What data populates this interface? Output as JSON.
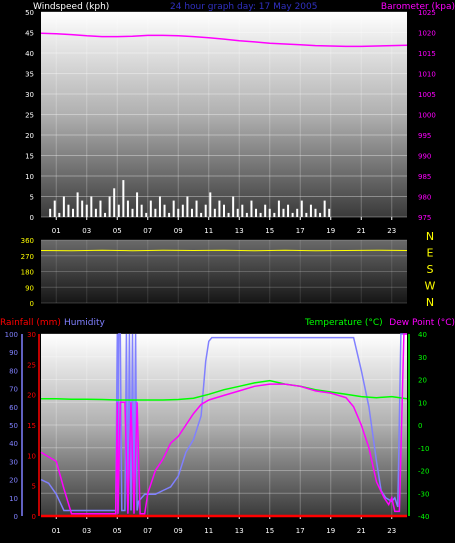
{
  "colors": {
    "background": "#000000",
    "wind": "#ffffff",
    "barometer": "#ff00ff",
    "direction": "#ffff00",
    "rainfall": "#ff0000",
    "humidity": "#8080ff",
    "temperature": "#00ff00",
    "dewpoint": "#ff00ff",
    "title": "#3030c0"
  },
  "chart_data": [
    {
      "type": "line",
      "title": "24 hour graph day: 17 May 2005",
      "ylabel_left": "Windspeed (kph)",
      "ylabel_right": "Barometer (kpa)",
      "x_ticks": [
        "01",
        "03",
        "05",
        "07",
        "09",
        "11",
        "13",
        "15",
        "17",
        "19",
        "21",
        "23"
      ],
      "ylim_left": [
        0,
        50
      ],
      "yticks_left": [
        "0",
        "5",
        "10",
        "15",
        "20",
        "25",
        "30",
        "35",
        "40",
        "45",
        "50"
      ],
      "ylim_right": [
        975,
        1025
      ],
      "yticks_right": [
        "975",
        "980",
        "985",
        "990",
        "995",
        "1000",
        "1005",
        "1010",
        "1015",
        "1020",
        "1025"
      ],
      "series": [
        {
          "name": "Windspeed",
          "type": "bar",
          "x": [
            0.6,
            0.9,
            1.2,
            1.5,
            1.8,
            2.1,
            2.4,
            2.7,
            3.0,
            3.3,
            3.6,
            3.9,
            4.2,
            4.5,
            4.8,
            5.1,
            5.4,
            5.7,
            6.0,
            6.3,
            6.6,
            6.9,
            7.2,
            7.5,
            7.8,
            8.1,
            8.4,
            8.7,
            9.0,
            9.3,
            9.6,
            9.9,
            10.2,
            10.5,
            10.8,
            11.1,
            11.4,
            11.7,
            12.0,
            12.3,
            12.6,
            12.9,
            13.2,
            13.5,
            13.8,
            14.1,
            14.4,
            14.7,
            15.0,
            15.3,
            15.6,
            15.9,
            16.2,
            16.5,
            16.8,
            17.1,
            17.4,
            17.7,
            18.0,
            18.3,
            18.6,
            18.9
          ],
          "values": [
            2,
            4,
            1,
            5,
            3,
            2,
            6,
            4,
            3,
            5,
            2,
            4,
            1,
            5,
            7,
            3,
            9,
            4,
            2,
            6,
            3,
            1,
            4,
            2,
            5,
            3,
            1,
            4,
            2,
            3,
            5,
            2,
            4,
            1,
            3,
            6,
            2,
            4,
            3,
            1,
            5,
            2,
            3,
            1,
            4,
            2,
            1,
            3,
            2,
            1,
            4,
            2,
            3,
            1,
            2,
            4,
            1,
            3,
            2,
            1,
            4,
            2
          ]
        },
        {
          "name": "Barometer",
          "type": "line",
          "axis": "right",
          "x": [
            0,
            1,
            2,
            3,
            4,
            5,
            6,
            7,
            8,
            9,
            10,
            11,
            12,
            13,
            14,
            15,
            16,
            17,
            18,
            19,
            20,
            21,
            22,
            23,
            24
          ],
          "values": [
            1019.8,
            1019.7,
            1019.5,
            1019.2,
            1019.0,
            1019.0,
            1019.1,
            1019.3,
            1019.3,
            1019.2,
            1019.0,
            1018.7,
            1018.4,
            1018.0,
            1017.7,
            1017.4,
            1017.2,
            1017.0,
            1016.8,
            1016.7,
            1016.6,
            1016.6,
            1016.7,
            1016.8,
            1016.9
          ]
        }
      ]
    },
    {
      "type": "line",
      "ylim": [
        0,
        360
      ],
      "yticks": [
        "0",
        "90",
        "180",
        "270",
        "360"
      ],
      "compass": [
        "N",
        "E",
        "S",
        "W",
        "N"
      ],
      "series": [
        {
          "name": "Wind direction",
          "x": [
            0,
            2,
            4,
            6,
            8,
            10,
            12,
            14,
            16,
            18,
            20,
            22,
            24
          ],
          "values": [
            300,
            298,
            302,
            299,
            301,
            300,
            302,
            298,
            301,
            299,
            300,
            302,
            300
          ]
        }
      ]
    },
    {
      "type": "line",
      "x_ticks": [
        "01",
        "03",
        "05",
        "07",
        "09",
        "11",
        "13",
        "15",
        "17",
        "19",
        "21",
        "23"
      ],
      "legend_left": [
        "Rainfall (mm)",
        "Humidity"
      ],
      "legend_right": [
        "Temperature (°C)",
        "Dew Point (°C)"
      ],
      "ylim_left_outer": [
        0,
        100
      ],
      "yticks_left_outer": [
        "0",
        "10",
        "20",
        "30",
        "40",
        "50",
        "60",
        "70",
        "80",
        "90",
        "100"
      ],
      "ylim_left_inner": [
        0,
        30
      ],
      "yticks_left_inner": [
        "0",
        "5",
        "10",
        "15",
        "20",
        "25",
        "30"
      ],
      "ylim_right": [
        -40,
        40
      ],
      "yticks_right": [
        "-40",
        "-30",
        "-20",
        "-10",
        "0",
        "10",
        "20",
        "30",
        "40"
      ],
      "series": [
        {
          "name": "Humidity",
          "axis": "left_outer",
          "x": [
            0,
            0.5,
            1,
            1.5,
            2,
            2.5,
            3,
            3.5,
            4,
            4.5,
            4.9,
            5,
            5.05,
            5.1,
            5.2,
            5.3,
            5.5,
            5.6,
            5.7,
            5.8,
            5.9,
            6,
            6.1,
            6.2,
            6.3,
            6.4,
            6.6,
            6.8,
            7,
            7.5,
            8,
            8.5,
            9,
            9.5,
            10,
            10.5,
            10.8,
            11,
            11.2,
            11.5,
            12,
            13,
            14,
            15,
            16,
            17,
            18,
            19,
            20,
            20.5,
            21,
            21.5,
            22,
            22.3,
            22.6,
            23,
            23.2,
            23.4,
            23.6,
            23.8,
            24
          ],
          "values": [
            20,
            18,
            12,
            3,
            3,
            3,
            3,
            3,
            3,
            3,
            3,
            100,
            3,
            100,
            100,
            3,
            3,
            100,
            3,
            100,
            3,
            100,
            3,
            100,
            3,
            8,
            10,
            12,
            12,
            12,
            14,
            16,
            22,
            35,
            42,
            55,
            85,
            96,
            98,
            98,
            98,
            98,
            98,
            98,
            98,
            98,
            98,
            98,
            98,
            98,
            80,
            60,
            30,
            14,
            10,
            8,
            10,
            5,
            100,
            100,
            100
          ]
        },
        {
          "name": "Temperature",
          "axis": "right",
          "x": [
            0,
            1,
            2,
            3,
            4,
            5,
            6,
            7,
            8,
            9,
            10,
            11,
            12,
            13,
            14,
            15,
            16,
            17,
            18,
            19,
            20,
            21,
            22,
            23,
            24
          ],
          "values": [
            11.5,
            11.5,
            11.3,
            11.3,
            11.2,
            11.0,
            11.0,
            11.0,
            11.0,
            11.2,
            11.8,
            13.5,
            15.5,
            17.0,
            18.5,
            19.5,
            18.0,
            17.0,
            15.5,
            14.5,
            13.5,
            12.5,
            12.0,
            12.5,
            11.5
          ]
        },
        {
          "name": "Dew Point",
          "axis": "right",
          "x": [
            0,
            0.5,
            1,
            1.5,
            2,
            3,
            4,
            4.9,
            5,
            5.05,
            5.2,
            5.5,
            5.7,
            5.9,
            6.1,
            6.3,
            6.5,
            6.8,
            7,
            7.5,
            8,
            8.5,
            9,
            9.5,
            10,
            10.5,
            11,
            12,
            13,
            14,
            15,
            16,
            17,
            18,
            19,
            20,
            20.5,
            21,
            21.5,
            22,
            22.5,
            22.8,
            23,
            23.2,
            23.5,
            23.8,
            24
          ],
          "values": [
            -12,
            -14,
            -16,
            -28,
            -39,
            -39,
            -39,
            -39,
            10,
            -39,
            10,
            10,
            -39,
            10,
            -39,
            10,
            -39,
            -39,
            -30,
            -20,
            -15,
            -8,
            -5,
            0,
            5,
            9,
            11,
            13,
            15,
            17,
            18,
            18,
            17,
            15,
            14,
            12,
            8,
            0,
            -10,
            -25,
            -32,
            -35,
            -32,
            -38,
            -38,
            40,
            40
          ]
        },
        {
          "name": "Rainfall",
          "axis": "left_inner",
          "x": [
            0,
            24
          ],
          "values": [
            0,
            0
          ]
        }
      ]
    }
  ]
}
